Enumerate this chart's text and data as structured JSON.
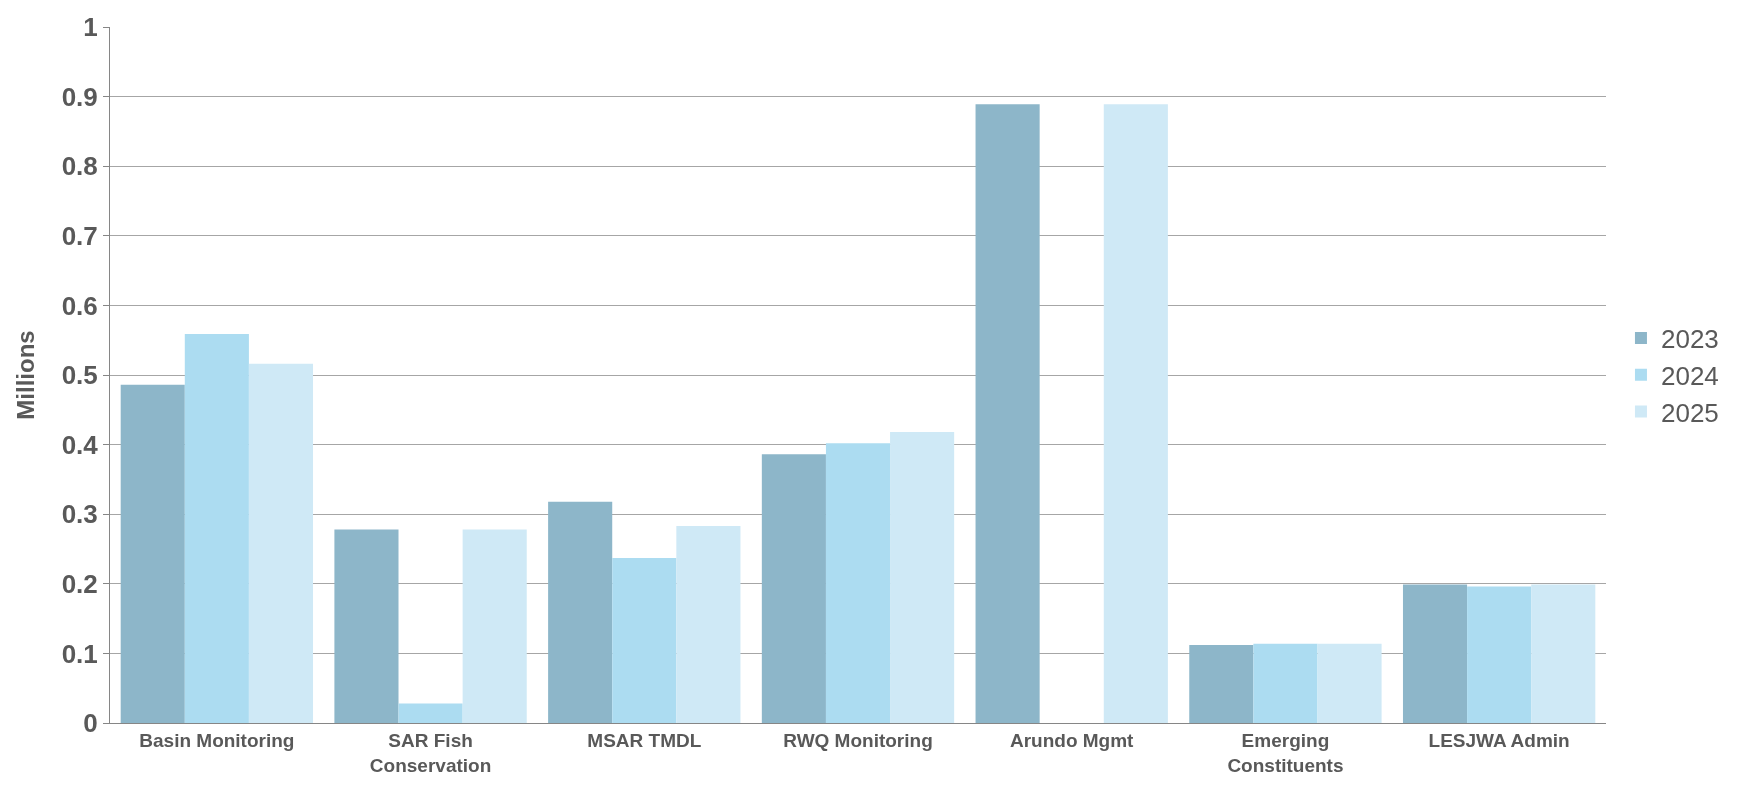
{
  "chart_data": {
    "type": "bar",
    "ylabel": "Millions",
    "categories": [
      "Basin Monitoring",
      "SAR Fish Conservation",
      "MSAR TMDL",
      "RWQ Monitoring",
      "Arundo Mgmt",
      "Emerging Constituents",
      "LESJWA Admin"
    ],
    "series": [
      {
        "name": "2023",
        "color": "#8db6c9",
        "values": [
          0.486,
          0.278,
          0.318,
          0.386,
          0.889,
          0.112,
          0.199
        ]
      },
      {
        "name": "2024",
        "color": "#acdcf1",
        "values": [
          0.559,
          0.028,
          0.237,
          0.402,
          0,
          0.114,
          0.196
        ]
      },
      {
        "name": "2025",
        "color": "#cfe9f6",
        "values": [
          0.516,
          0.278,
          0.283,
          0.418,
          0.889,
          0.114,
          0.199
        ]
      }
    ],
    "ylim": [
      0,
      1
    ],
    "yticks": [
      0,
      0.1,
      0.2,
      0.3,
      0.4,
      0.5,
      0.6,
      0.7,
      0.8,
      0.9,
      1
    ],
    "grid": "y",
    "legend": "right"
  }
}
